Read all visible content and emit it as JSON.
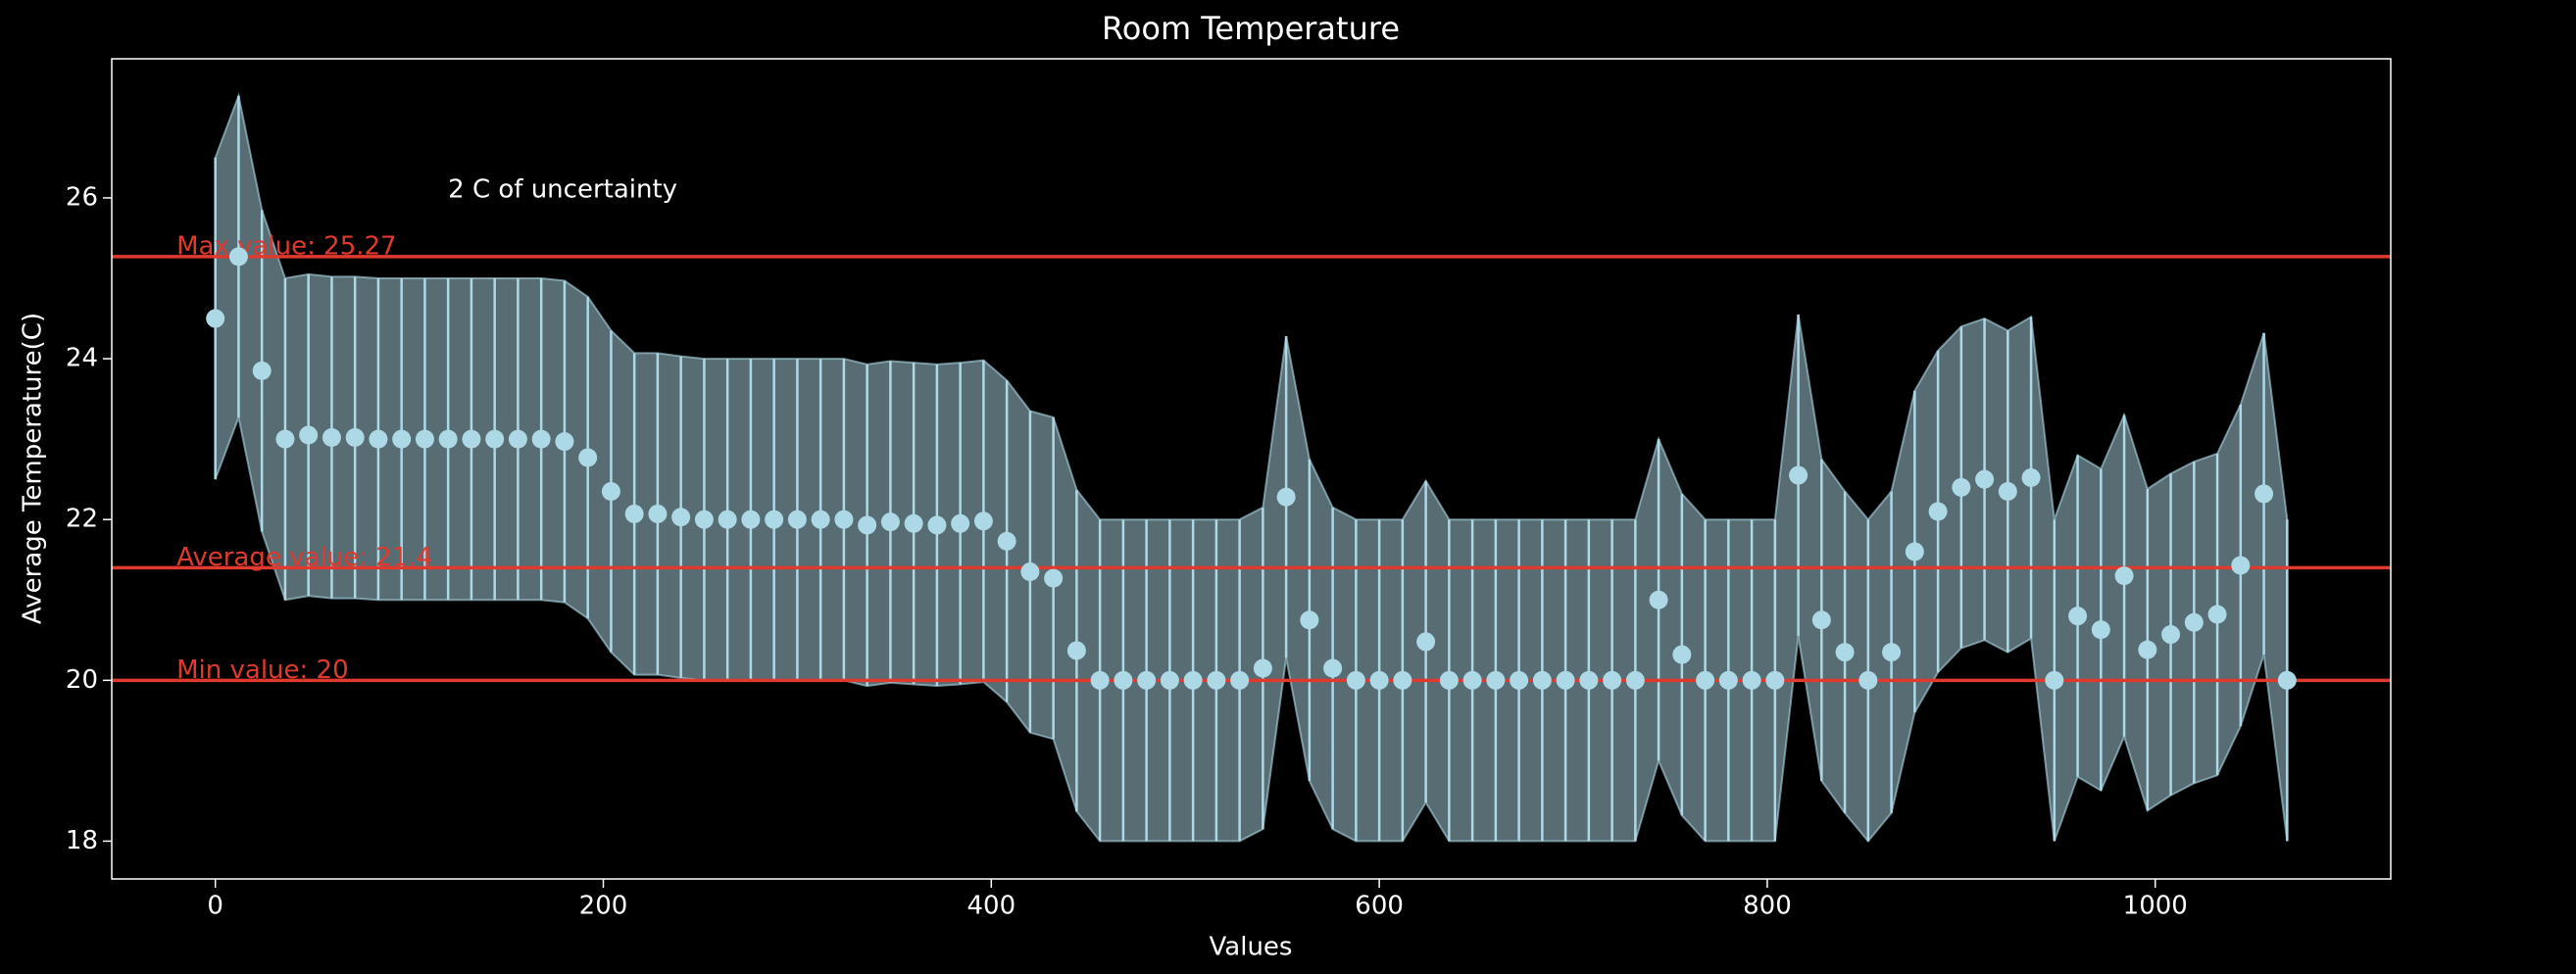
{
  "chart_data": {
    "type": "errorbar",
    "title": "Room Temperature",
    "x_label": "Values",
    "y_label": "Average Temperature(C)",
    "annotation": {
      "text": "2 C of uncertainty",
      "x": 120,
      "y": 26.1
    },
    "x": [
      0,
      12,
      24,
      36,
      48,
      60,
      72,
      84,
      96,
      108,
      120,
      132,
      144,
      156,
      168,
      180,
      192,
      204,
      216,
      228,
      240,
      252,
      264,
      276,
      288,
      300,
      312,
      324,
      336,
      348,
      360,
      372,
      384,
      396,
      408,
      420,
      432,
      444,
      456,
      468,
      480,
      492,
      504,
      516,
      528,
      540,
      552,
      564,
      576,
      588,
      600,
      612,
      624,
      636,
      648,
      660,
      672,
      684,
      696,
      708,
      720,
      732,
      744,
      756,
      768,
      780,
      792,
      804,
      816,
      828,
      840,
      852,
      864,
      876,
      888,
      900,
      912,
      924,
      936,
      948,
      960,
      972,
      984,
      996,
      1008,
      1020,
      1032,
      1044,
      1056,
      1068
    ],
    "values": [
      24.5,
      25.27,
      23.85,
      23.0,
      23.05,
      23.02,
      23.02,
      23.0,
      23.0,
      23.0,
      23.0,
      23.0,
      23.0,
      23.0,
      23.0,
      22.97,
      22.77,
      22.35,
      22.07,
      22.07,
      22.03,
      22.0,
      22.0,
      22.0,
      22.0,
      22.0,
      22.0,
      22.0,
      21.93,
      21.97,
      21.95,
      21.93,
      21.95,
      21.98,
      21.73,
      21.35,
      21.27,
      20.37,
      20,
      20,
      20,
      20,
      20,
      20,
      20,
      20.15,
      22.28,
      20.75,
      20.15,
      20,
      20,
      20,
      20.48,
      20,
      20,
      20,
      20,
      20,
      20,
      20,
      20,
      20,
      21.0,
      20.32,
      20,
      20,
      20,
      20,
      22.55,
      20.75,
      20.35,
      20.0,
      20.35,
      21.6,
      22.1,
      22.4,
      22.5,
      22.35,
      22.52,
      20.0,
      20.8,
      20.63,
      21.3,
      20.38,
      20.57,
      20.72,
      20.82,
      21.43,
      22.32,
      20.0
    ],
    "error": 2,
    "color": "#add8e6",
    "reference_lines": [
      {
        "label": "Max value: 25.27",
        "value": 25.27
      },
      {
        "label": "Average value: 21.4",
        "value": 21.4
      },
      {
        "label": "Min value: 20",
        "value": 20
      }
    ],
    "reference_color": "#e0392d",
    "reference_label_x": -20,
    "xlim": [
      -53.4,
      1121.4
    ],
    "ylim": [
      17.53,
      27.73
    ],
    "xticks": [
      0,
      200,
      400,
      600,
      800,
      1000
    ],
    "yticks": [
      18,
      20,
      22,
      24,
      26
    ]
  }
}
